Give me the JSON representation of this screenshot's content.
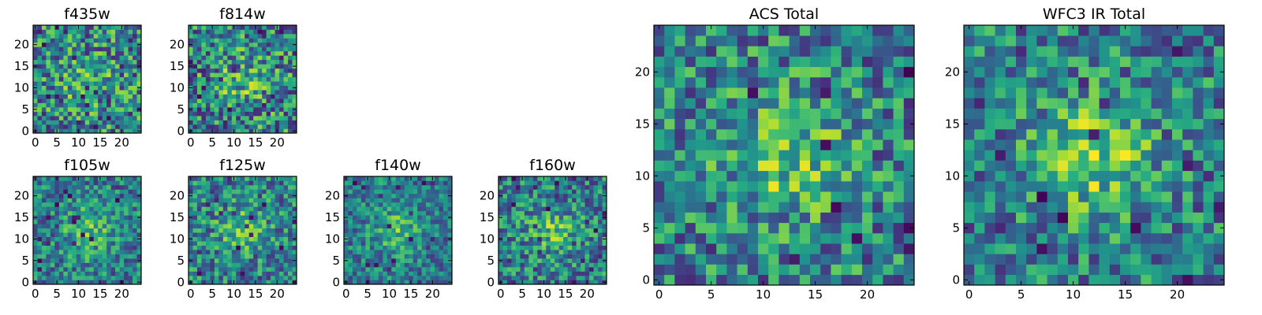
{
  "chart_data": [
    {
      "type": "heatmap",
      "title": "f435w",
      "xlim": [
        0,
        24
      ],
      "ylim": [
        0,
        24
      ],
      "xticks": [
        0,
        5,
        10,
        15,
        20
      ],
      "yticks": [
        0,
        5,
        10,
        15,
        20
      ],
      "grid_size": [
        25,
        25
      ],
      "colormap": "viridis",
      "seed": 11,
      "blob": 0.15,
      "noise": 0.75
    },
    {
      "type": "heatmap",
      "title": "f814w",
      "xlim": [
        0,
        24
      ],
      "ylim": [
        0,
        24
      ],
      "xticks": [
        0,
        5,
        10,
        15,
        20
      ],
      "yticks": [
        0,
        5,
        10,
        15,
        20
      ],
      "grid_size": [
        25,
        25
      ],
      "colormap": "viridis",
      "seed": 23,
      "blob": 0.2,
      "noise": 0.75
    },
    {
      "type": "heatmap",
      "title": "f105w",
      "xlim": [
        0,
        24
      ],
      "ylim": [
        0,
        24
      ],
      "xticks": [
        0,
        5,
        10,
        15,
        20
      ],
      "yticks": [
        0,
        5,
        10,
        15,
        20
      ],
      "grid_size": [
        25,
        25
      ],
      "colormap": "viridis",
      "seed": 37,
      "blob": 0.25,
      "noise": 0.55
    },
    {
      "type": "heatmap",
      "title": "f125w",
      "xlim": [
        0,
        24
      ],
      "ylim": [
        0,
        24
      ],
      "xticks": [
        0,
        5,
        10,
        15,
        20
      ],
      "yticks": [
        0,
        5,
        10,
        15,
        20
      ],
      "grid_size": [
        25,
        25
      ],
      "colormap": "viridis",
      "seed": 41,
      "blob": 0.25,
      "noise": 0.6
    },
    {
      "type": "heatmap",
      "title": "f140w",
      "xlim": [
        0,
        24
      ],
      "ylim": [
        0,
        24
      ],
      "xticks": [
        0,
        5,
        10,
        15,
        20
      ],
      "yticks": [
        0,
        5,
        10,
        15,
        20
      ],
      "grid_size": [
        25,
        25
      ],
      "colormap": "viridis",
      "seed": 53,
      "blob": 0.25,
      "noise": 0.5
    },
    {
      "type": "heatmap",
      "title": "f160w",
      "xlim": [
        0,
        24
      ],
      "ylim": [
        0,
        24
      ],
      "xticks": [
        0,
        5,
        10,
        15,
        20
      ],
      "yticks": [
        0,
        5,
        10,
        15,
        20
      ],
      "grid_size": [
        25,
        25
      ],
      "colormap": "viridis",
      "seed": 67,
      "blob": 0.25,
      "noise": 0.6
    },
    {
      "type": "heatmap",
      "title": "ACS Total",
      "xlim": [
        0,
        24
      ],
      "ylim": [
        0,
        24
      ],
      "xticks": [
        0,
        5,
        10,
        15,
        20
      ],
      "yticks": [
        0,
        5,
        10,
        15,
        20
      ],
      "grid_size": [
        25,
        25
      ],
      "colormap": "viridis",
      "seed": 79,
      "blob": 0.3,
      "noise": 0.65
    },
    {
      "type": "heatmap",
      "title": "WFC3 IR Total",
      "xlim": [
        0,
        24
      ],
      "ylim": [
        0,
        24
      ],
      "xticks": [
        0,
        5,
        10,
        15,
        20
      ],
      "yticks": [
        0,
        5,
        10,
        15,
        20
      ],
      "grid_size": [
        25,
        25
      ],
      "colormap": "viridis",
      "seed": 83,
      "blob": 0.35,
      "noise": 0.6
    }
  ]
}
